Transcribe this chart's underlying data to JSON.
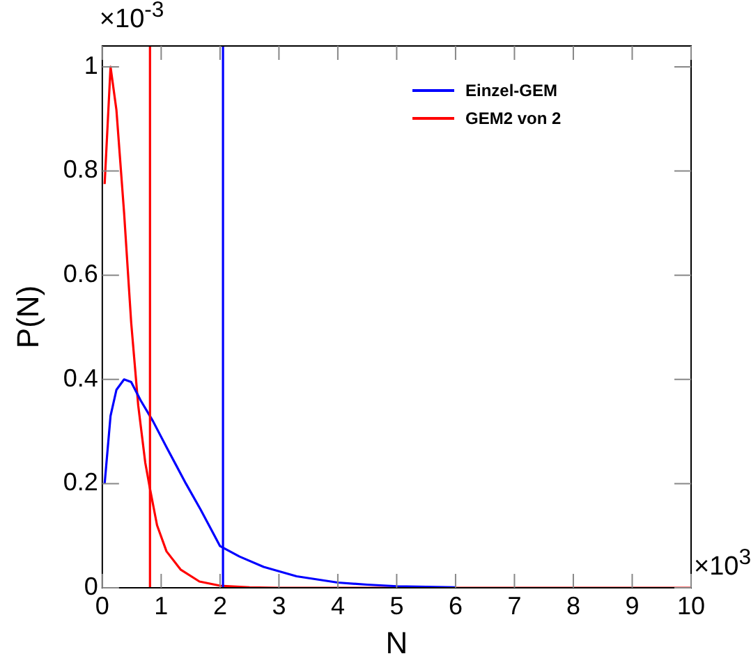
{
  "chart_data": {
    "type": "line",
    "xlabel": "N",
    "ylabel": "P(N)",
    "annotations": [
      "×10$^{-3}$",
      "×10$^{3}$"
    ],
    "xlim": [
      0,
      10
    ],
    "xticks": [
      0,
      1,
      2,
      3,
      4,
      5,
      6,
      7,
      8,
      9,
      10
    ],
    "ylim": [
      0,
      1.04
    ],
    "yticks": [
      0,
      0.2,
      0.4,
      0.6,
      0.8,
      1
    ],
    "grid": false,
    "legend": "top right",
    "marker": "none",
    "line_style": "solid",
    "series": [
      {
        "name": "Einzel-GEM",
        "color": "#0000ff",
        "x": [
          0.04,
          0.14,
          0.24,
          0.37,
          0.49,
          0.65,
          0.86,
          1.09,
          1.42,
          1.67,
          2.0,
          2.33,
          2.74,
          3.3,
          4.0,
          4.5,
          5.0,
          6.0
        ],
        "values": [
          0.2,
          0.33,
          0.38,
          0.4,
          0.395,
          0.36,
          0.32,
          0.27,
          0.2,
          0.15,
          0.08,
          0.06,
          0.04,
          0.022,
          0.01,
          0.006,
          0.003,
          0.001
        ]
      },
      {
        "name": "GEM2 von 2",
        "color": "#ff0000",
        "x": [
          0.04,
          0.14,
          0.24,
          0.37,
          0.49,
          0.61,
          0.73,
          0.81,
          0.93,
          1.09,
          1.33,
          1.65,
          2.0,
          2.5,
          3.0,
          10.0
        ],
        "values": [
          0.775,
          1.0,
          0.917,
          0.72,
          0.51,
          0.35,
          0.24,
          0.19,
          0.12,
          0.07,
          0.035,
          0.012,
          0.004,
          0.001,
          0,
          0
        ]
      }
    ],
    "ref_lines": [
      {
        "axis": "x",
        "value": 0.81,
        "color": "#ff0000"
      },
      {
        "axis": "x",
        "value": 2.05,
        "color": "#0000ff"
      }
    ]
  }
}
